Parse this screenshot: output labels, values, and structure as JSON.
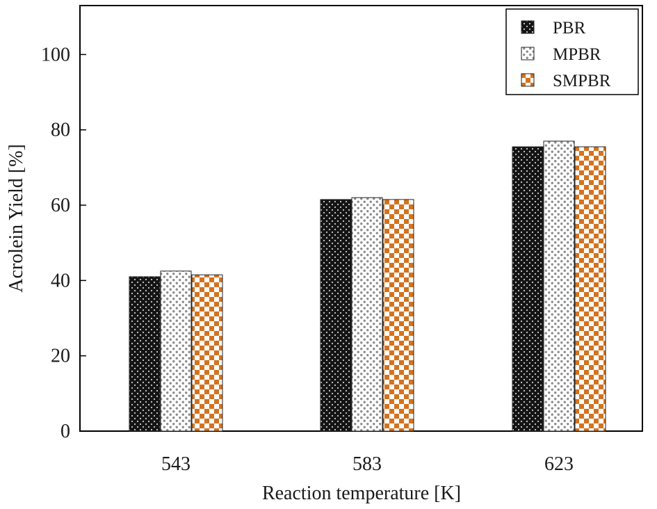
{
  "chart_data": {
    "type": "bar",
    "title": "",
    "xlabel": "Reaction temperature [K]",
    "ylabel": "Acrolein Yield [%]",
    "categories": [
      "543",
      "583",
      "623"
    ],
    "ylim": [
      0,
      113
    ],
    "yticks": [
      "0",
      "20",
      "40",
      "60",
      "80",
      "100"
    ],
    "series": [
      {
        "name": "PBR",
        "values": [
          41,
          61.5,
          75.5
        ],
        "pattern": "dark-dots",
        "color": "#1a1a1a"
      },
      {
        "name": "MPBR",
        "values": [
          42.5,
          62,
          77
        ],
        "pattern": "light-dots",
        "color": "#9a9a9a"
      },
      {
        "name": "SMPBR",
        "values": [
          41.5,
          61.5,
          75.5
        ],
        "pattern": "checker",
        "color": "#d4731f"
      }
    ],
    "legend_position": "top-right",
    "grid": false
  }
}
